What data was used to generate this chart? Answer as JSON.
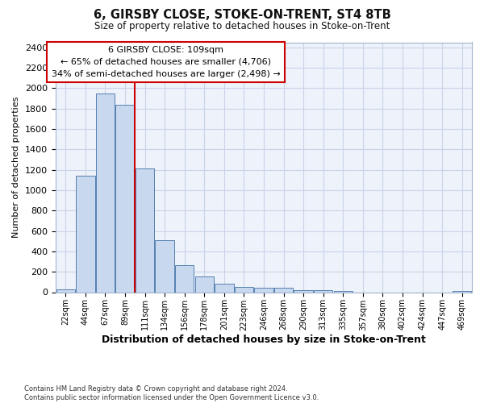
{
  "title": "6, GIRSBY CLOSE, STOKE-ON-TRENT, ST4 8TB",
  "subtitle": "Size of property relative to detached houses in Stoke-on-Trent",
  "xlabel": "Distribution of detached houses by size in Stoke-on-Trent",
  "ylabel": "Number of detached properties",
  "bar_labels": [
    "22sqm",
    "44sqm",
    "67sqm",
    "89sqm",
    "111sqm",
    "134sqm",
    "156sqm",
    "178sqm",
    "201sqm",
    "223sqm",
    "246sqm",
    "268sqm",
    "290sqm",
    "313sqm",
    "335sqm",
    "357sqm",
    "380sqm",
    "402sqm",
    "424sqm",
    "447sqm",
    "469sqm"
  ],
  "bar_values": [
    30,
    1145,
    1950,
    1840,
    1210,
    510,
    265,
    155,
    80,
    50,
    42,
    40,
    22,
    18,
    8,
    0,
    0,
    0,
    0,
    0,
    8
  ],
  "bar_color": "#c8d8ee",
  "bar_edge_color": "#5580b0",
  "vline_index": 4,
  "annotation_text_line1": "6 GIRSBY CLOSE: 109sqm",
  "annotation_text_line2": "← 65% of detached houses are smaller (4,706)",
  "annotation_text_line3": "34% of semi-detached houses are larger (2,498) →",
  "vline_color": "#cc0000",
  "annotation_box_facecolor": "#ffffff",
  "annotation_box_edgecolor": "#cc0000",
  "ylim": [
    0,
    2450
  ],
  "yticks": [
    0,
    200,
    400,
    600,
    800,
    1000,
    1200,
    1400,
    1600,
    1800,
    2000,
    2200,
    2400
  ],
  "footer_line1": "Contains HM Land Registry data © Crown copyright and database right 2024.",
  "footer_line2": "Contains public sector information licensed under the Open Government Licence v3.0.",
  "bg_color": "#ffffff",
  "plot_bg_color": "#eef2fa",
  "grid_color": "#c8d4e8"
}
